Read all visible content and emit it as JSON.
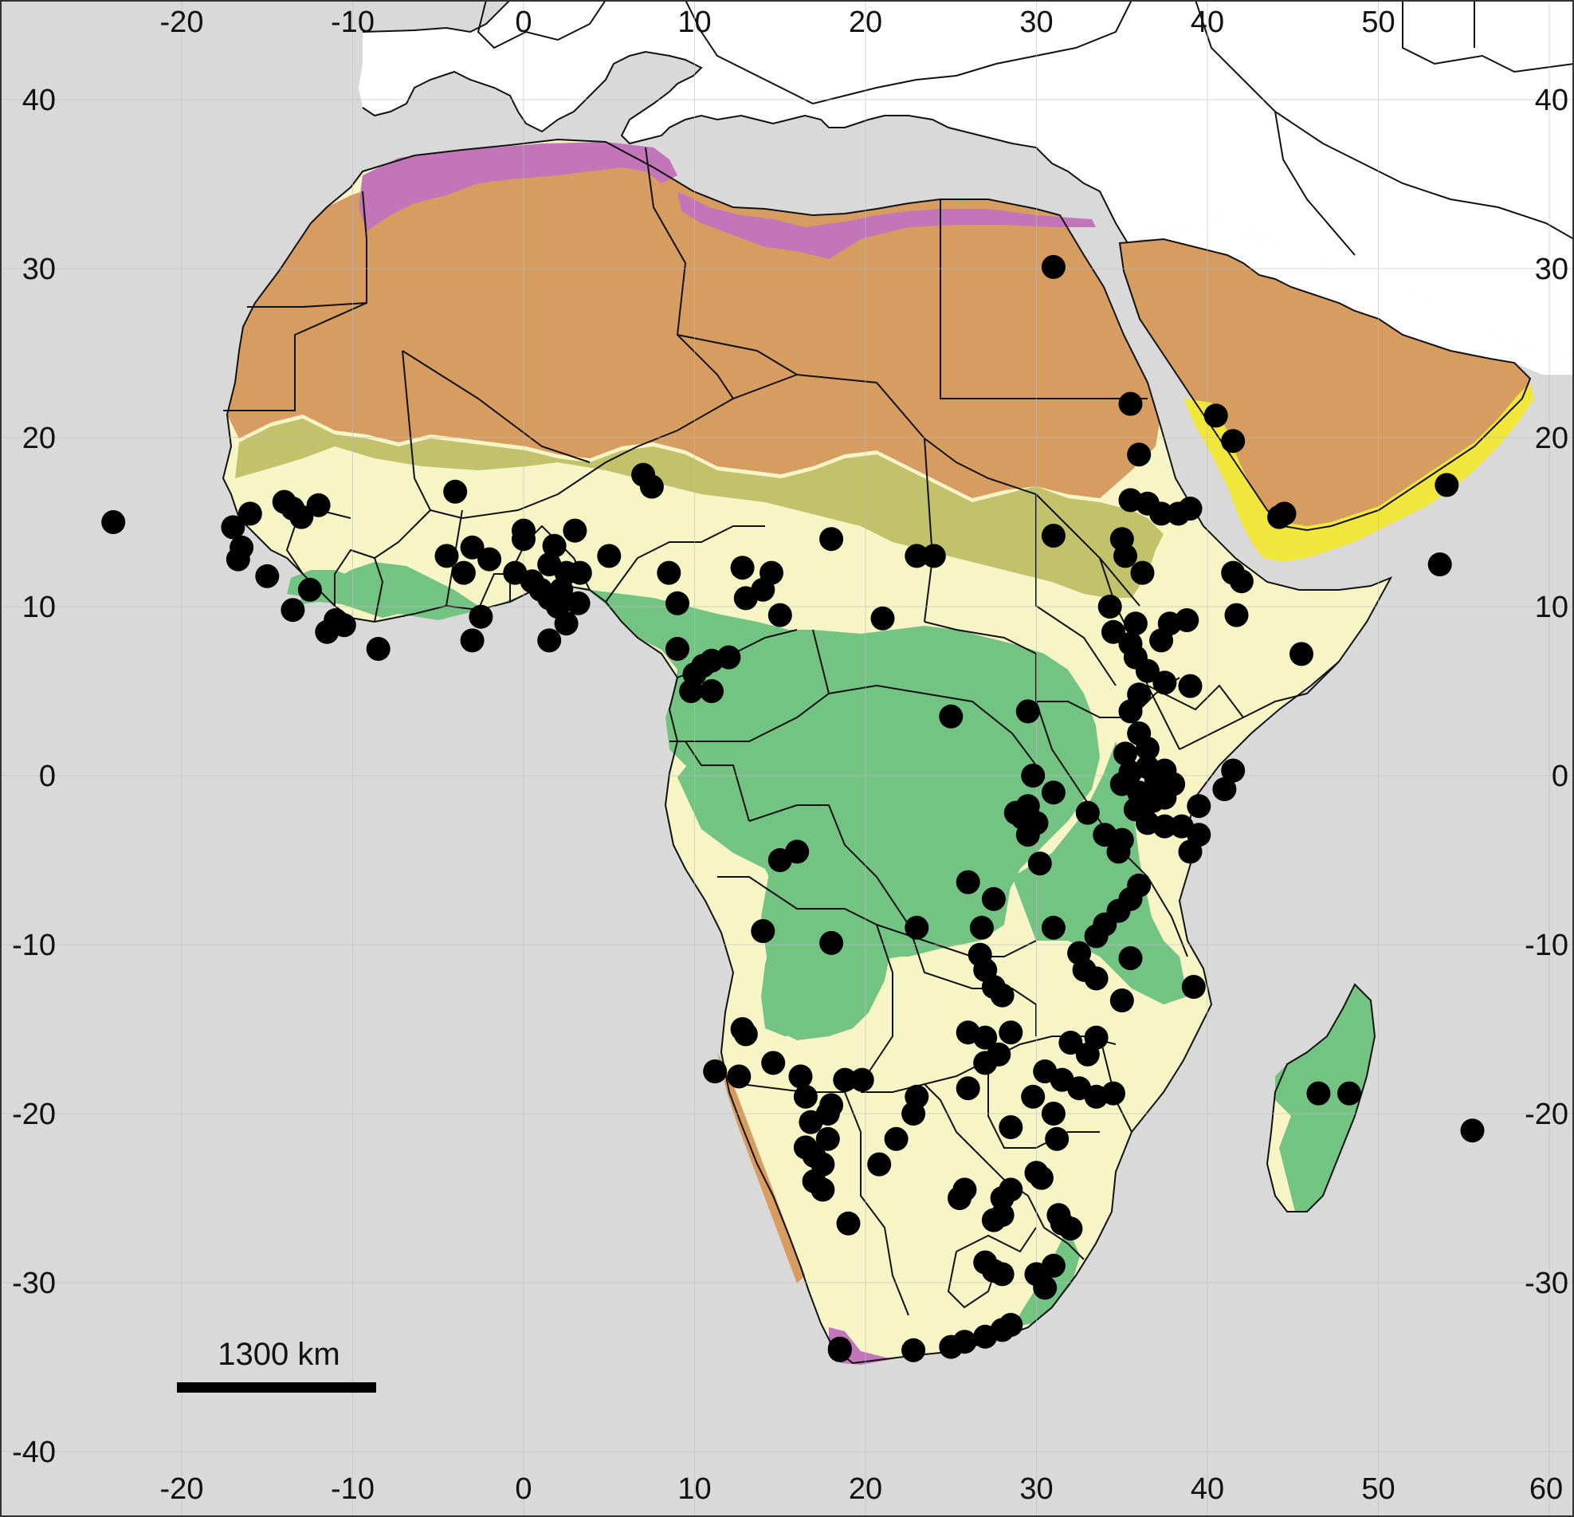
{
  "map": {
    "scale_bar": {
      "label": "1300 km"
    },
    "axes": {
      "x_ticks": [
        "-20",
        "-10",
        "0",
        "10",
        "20",
        "30",
        "40",
        "50",
        "60"
      ],
      "y_ticks": [
        "40",
        "30",
        "20",
        "10",
        "0",
        "-10",
        "-20",
        "-30",
        "-40"
      ]
    },
    "colors": {
      "ocean": "#d9d9d9",
      "land_outside": "#ffffff",
      "desert": "#d79c5f",
      "mediterranean": "#c375b9",
      "sahel": "#c2c26a",
      "savanna": "#f7f4c6",
      "forest": "#73c482",
      "arabian_coast": "#f0e63c",
      "border": "#111111",
      "points": "#000000"
    },
    "occurrence_points": [
      [
        -24,
        15
      ],
      [
        -17,
        14.7
      ],
      [
        -16.5,
        13.5
      ],
      [
        -16.7,
        12.8
      ],
      [
        -16,
        15.5
      ],
      [
        -15,
        11.8
      ],
      [
        -14,
        16.2
      ],
      [
        -13.5,
        15.8
      ],
      [
        -13,
        15.3
      ],
      [
        -12,
        16
      ],
      [
        -13.5,
        9.8
      ],
      [
        -12.5,
        11
      ],
      [
        -11.5,
        8.5
      ],
      [
        -11,
        9.2
      ],
      [
        -10.5,
        8.9
      ],
      [
        -8.5,
        7.5
      ],
      [
        -4,
        16.8
      ],
      [
        -4.5,
        13
      ],
      [
        -3.5,
        12
      ],
      [
        -3,
        13.5
      ],
      [
        -2.5,
        9.4
      ],
      [
        -3,
        8
      ],
      [
        -2,
        12.8
      ],
      [
        -0.5,
        12
      ],
      [
        0,
        14.5
      ],
      [
        0,
        14
      ],
      [
        0.5,
        11.5
      ],
      [
        1,
        11
      ],
      [
        1.5,
        12.5
      ],
      [
        1.8,
        13.6
      ],
      [
        2.2,
        11
      ],
      [
        1.5,
        10.5
      ],
      [
        2.5,
        12
      ],
      [
        2,
        10
      ],
      [
        2.5,
        9
      ],
      [
        1.5,
        8
      ],
      [
        3,
        14.5
      ],
      [
        3.3,
        12
      ],
      [
        3.2,
        10.2
      ],
      [
        5,
        13
      ],
      [
        7,
        17.8
      ],
      [
        7.5,
        17.1
      ],
      [
        8.5,
        12
      ],
      [
        9,
        10.2
      ],
      [
        9,
        7.5
      ],
      [
        10,
        6
      ],
      [
        10.5,
        6.5
      ],
      [
        9.8,
        5
      ],
      [
        11,
        5
      ],
      [
        11,
        6.8
      ],
      [
        12,
        7
      ],
      [
        12.8,
        12.3
      ],
      [
        13,
        10.5
      ],
      [
        14,
        11
      ],
      [
        14.5,
        12
      ],
      [
        15,
        9.5
      ],
      [
        18,
        14
      ],
      [
        21,
        9.3
      ],
      [
        23,
        13
      ],
      [
        24,
        13
      ],
      [
        31,
        30.1
      ],
      [
        31,
        14.2
      ],
      [
        35.5,
        22
      ],
      [
        36,
        19
      ],
      [
        35.5,
        16.3
      ],
      [
        36.5,
        16.1
      ],
      [
        37.3,
        15.5
      ],
      [
        38.3,
        15.5
      ],
      [
        39,
        15.8
      ],
      [
        35,
        14
      ],
      [
        35.2,
        13
      ],
      [
        36.2,
        12
      ],
      [
        34.3,
        10
      ],
      [
        34.5,
        8.5
      ],
      [
        35.8,
        9
      ],
      [
        35.5,
        7.8
      ],
      [
        35.8,
        7
      ],
      [
        36.5,
        6.2
      ],
      [
        37.5,
        5.5
      ],
      [
        36,
        4.8
      ],
      [
        37.8,
        9
      ],
      [
        37.3,
        8
      ],
      [
        38.8,
        9.2
      ],
      [
        39,
        5.3
      ],
      [
        41.5,
        12
      ],
      [
        42,
        11.5
      ],
      [
        41.7,
        9.5
      ],
      [
        45.5,
        7.2
      ],
      [
        40.5,
        21.3
      ],
      [
        41.5,
        19.8
      ],
      [
        44.2,
        15.3
      ],
      [
        44.5,
        15.5
      ],
      [
        54,
        17.2
      ],
      [
        53.6,
        12.5
      ],
      [
        35.5,
        3.8
      ],
      [
        36,
        2.5
      ],
      [
        35.2,
        1.3
      ],
      [
        36.5,
        1.6
      ],
      [
        36.5,
        0.5
      ],
      [
        35.5,
        0.2
      ],
      [
        35,
        -0.5
      ],
      [
        36,
        -1
      ],
      [
        37,
        -0.2
      ],
      [
        37.5,
        0.3
      ],
      [
        38,
        -0.5
      ],
      [
        37.5,
        -1.3
      ],
      [
        36.8,
        -1.5
      ],
      [
        35.8,
        -2
      ],
      [
        36.5,
        -2.8
      ],
      [
        37.5,
        -3
      ],
      [
        38.5,
        -3
      ],
      [
        39.5,
        -3.5
      ],
      [
        39,
        -4.5
      ],
      [
        39.5,
        -1.8
      ],
      [
        41,
        -0.8
      ],
      [
        41.5,
        0.3
      ],
      [
        33,
        -2.2
      ],
      [
        34,
        -3.5
      ],
      [
        35,
        -3.8
      ],
      [
        34.8,
        -4.5
      ],
      [
        29.5,
        3.8
      ],
      [
        29.8,
        0
      ],
      [
        29.5,
        -1.8
      ],
      [
        29.2,
        -2.5
      ],
      [
        30,
        -2.8
      ],
      [
        29.5,
        -3.5
      ],
      [
        30.2,
        -5.2
      ],
      [
        31,
        -1
      ],
      [
        28.8,
        -2.2
      ],
      [
        36,
        -6.5
      ],
      [
        35.5,
        -7.3
      ],
      [
        34.8,
        -8
      ],
      [
        34,
        -8.8
      ],
      [
        33.5,
        -9.5
      ],
      [
        32.5,
        -10.5
      ],
      [
        32.8,
        -11.5
      ],
      [
        33.5,
        -12
      ],
      [
        31,
        -9
      ],
      [
        35.5,
        -10.8
      ],
      [
        35,
        -13.3
      ],
      [
        39.2,
        -12.5
      ],
      [
        32,
        -15.8
      ],
      [
        33,
        -16.5
      ],
      [
        33.5,
        -15.5
      ],
      [
        25,
        3.5
      ],
      [
        26,
        -6.3
      ],
      [
        27.5,
        -7.3
      ],
      [
        26.8,
        -9
      ],
      [
        23,
        -9
      ],
      [
        18,
        -9.9
      ],
      [
        14,
        -9.2
      ],
      [
        15,
        -5
      ],
      [
        16,
        -4.5
      ],
      [
        26.7,
        -10.6
      ],
      [
        27,
        -11.5
      ],
      [
        27.5,
        -12.5
      ],
      [
        28,
        -13
      ],
      [
        26,
        -15.2
      ],
      [
        27,
        -15.5
      ],
      [
        28.5,
        -15.2
      ],
      [
        27,
        -17
      ],
      [
        27.8,
        -16.5
      ],
      [
        26,
        -18.5
      ],
      [
        12.8,
        -15
      ],
      [
        13,
        -15.3
      ],
      [
        11.2,
        -17.5
      ],
      [
        12.6,
        -17.8
      ],
      [
        14.6,
        -17
      ],
      [
        16.2,
        -17.8
      ],
      [
        16.5,
        -19
      ],
      [
        16.8,
        -20.5
      ],
      [
        17.8,
        -20
      ],
      [
        18,
        -19.5
      ],
      [
        16.5,
        -22
      ],
      [
        17,
        -22.5
      ],
      [
        17.5,
        -23
      ],
      [
        17,
        -24
      ],
      [
        17.5,
        -24.5
      ],
      [
        17.8,
        -21.5
      ],
      [
        18.8,
        -18
      ],
      [
        19.8,
        -18
      ],
      [
        23,
        -19
      ],
      [
        22.8,
        -20
      ],
      [
        21.8,
        -21.5
      ],
      [
        20.8,
        -23
      ],
      [
        19,
        -26.5
      ],
      [
        28.5,
        -20.8
      ],
      [
        29.8,
        -19
      ],
      [
        30.5,
        -17.5
      ],
      [
        31.5,
        -18
      ],
      [
        32.5,
        -18.5
      ],
      [
        33.5,
        -19
      ],
      [
        34.5,
        -18.8
      ],
      [
        31,
        -20
      ],
      [
        31.2,
        -21.5
      ],
      [
        30,
        -23.5
      ],
      [
        30.3,
        -23.8
      ],
      [
        28.5,
        -24.5
      ],
      [
        28,
        -25
      ],
      [
        25.8,
        -24.5
      ],
      [
        25.5,
        -25
      ],
      [
        28,
        -26
      ],
      [
        27.5,
        -26.3
      ],
      [
        31.3,
        -26
      ],
      [
        31.5,
        -26.5
      ],
      [
        32,
        -26.8
      ],
      [
        27,
        -28.8
      ],
      [
        28,
        -29.5
      ],
      [
        27.5,
        -29.3
      ],
      [
        30,
        -29.5
      ],
      [
        31,
        -29
      ],
      [
        30.5,
        -30.3
      ],
      [
        28.5,
        -32.5
      ],
      [
        28,
        -32.8
      ],
      [
        27,
        -33.2
      ],
      [
        25.8,
        -33.5
      ],
      [
        25,
        -33.8
      ],
      [
        18.5,
        -33.9
      ],
      [
        18.5,
        -34
      ],
      [
        22.8,
        -34
      ],
      [
        46.5,
        -18.8
      ],
      [
        48.3,
        -18.8
      ],
      [
        55.5,
        -21
      ]
    ]
  }
}
